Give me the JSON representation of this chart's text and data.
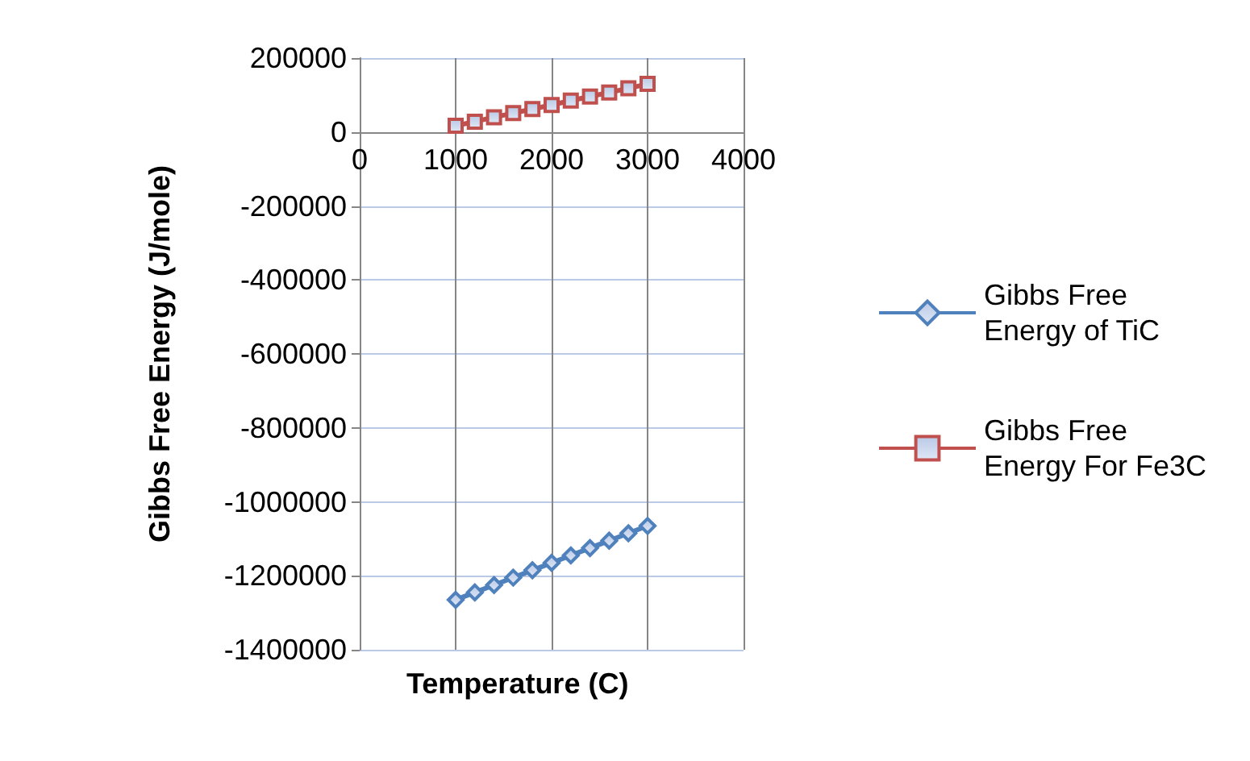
{
  "chart_data": {
    "type": "line",
    "xlabel": "Temperature (C)",
    "ylabel": "Gibbs Free Energy (J/mole)",
    "x": [
      1000,
      1200,
      1400,
      1600,
      1800,
      2000,
      2200,
      2400,
      2600,
      2800,
      3000
    ],
    "series": [
      {
        "name": "Gibbs Free Energy of TiC",
        "color": "#4f81bd",
        "marker": "diamond",
        "values": [
          -1265000,
          -1245000,
          -1225000,
          -1205000,
          -1185000,
          -1165000,
          -1145000,
          -1125000,
          -1105000,
          -1085000,
          -1065000
        ]
      },
      {
        "name": "Gibbs Free Energy For Fe3C",
        "color": "#c0504d",
        "marker": "square",
        "values": [
          17000,
          28000,
          40000,
          51000,
          62000,
          73000,
          85000,
          96000,
          107000,
          118000,
          130000
        ]
      }
    ],
    "xlim": [
      0,
      4000
    ],
    "xticks": [
      0,
      1000,
      2000,
      3000,
      4000
    ],
    "ylim": [
      -1400000,
      200000
    ],
    "yticks": [
      -1400000,
      -1200000,
      -1000000,
      -800000,
      -600000,
      -400000,
      -200000,
      0,
      200000
    ],
    "grid": true,
    "legend": "right"
  }
}
